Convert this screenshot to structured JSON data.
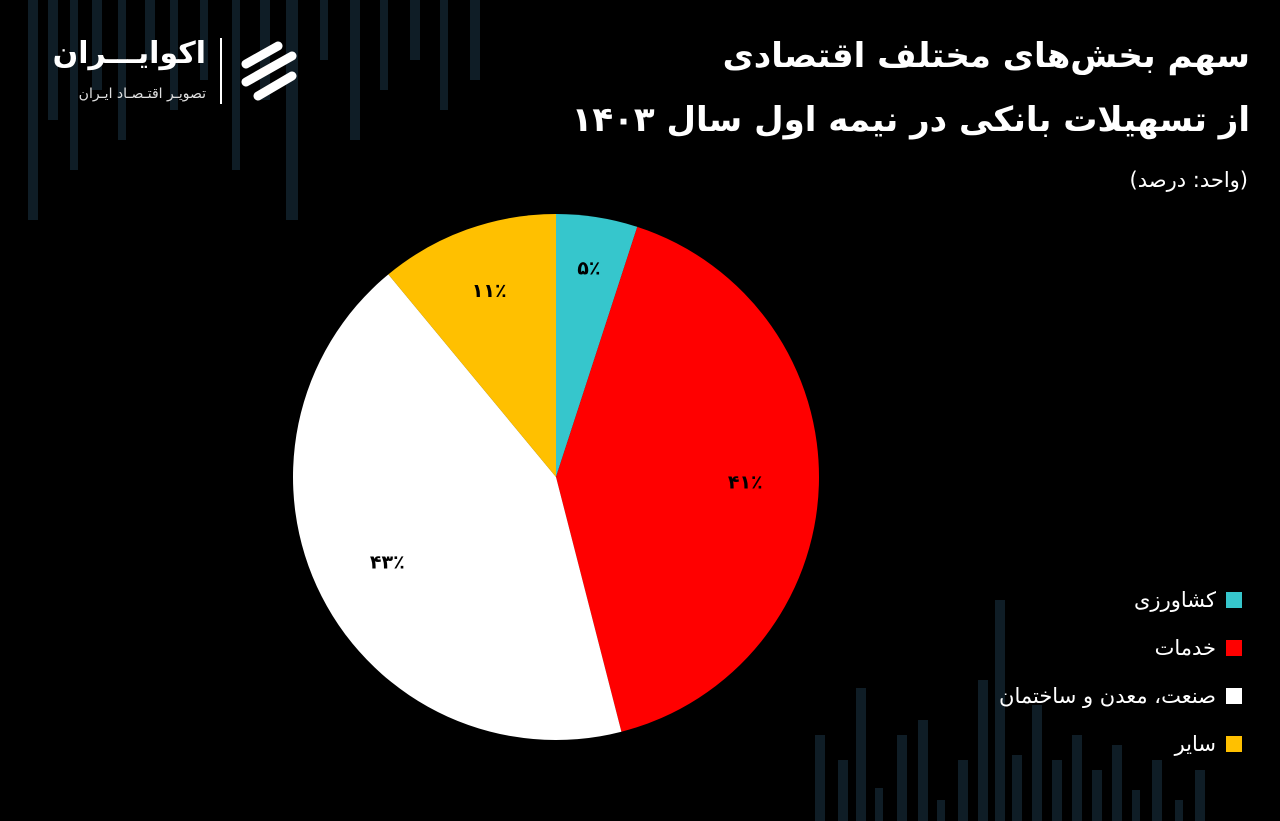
{
  "header": {
    "title_line1": "سهم بخش‌های مختلف اقتصادی",
    "title_line2": "از تسهیلات بانکی در نیمه اول سال ۱۴۰۳",
    "unit": "(واحد: درصد)"
  },
  "logo": {
    "name": "اکوایـــران",
    "tagline": "تصویـر اقتـصـاد ایـران",
    "icon": "ekoiran-logo-mark"
  },
  "chart_data": {
    "type": "pie",
    "title": "سهم بخش‌های مختلف اقتصادی از تسهیلات بانکی در نیمه اول سال ۱۴۰۳",
    "unit": "(واحد: درصد)",
    "categories": [
      "کشاورزی",
      "خدمات",
      "صنعت، معدن و ساختمان",
      "سایر"
    ],
    "values": [
      5,
      41,
      43,
      11
    ],
    "labels": [
      "۵٪",
      "۴۱٪",
      "۴۳٪",
      "۱۱٪"
    ],
    "colors": [
      "#36C6CC",
      "#FF0000",
      "#FFFFFF",
      "#FFC000"
    ],
    "start_angle_deg": 0,
    "direction": "clockwise",
    "legend_position": "bottom-right"
  },
  "legend": {
    "items": [
      {
        "label": "کشاورزی",
        "color": "#36C6CC"
      },
      {
        "label": "خدمات",
        "color": "#FF0000"
      },
      {
        "label": "صنعت، معدن و ساختمان",
        "color": "#FFFFFF"
      },
      {
        "label": "سایر",
        "color": "#FFC000"
      }
    ]
  }
}
